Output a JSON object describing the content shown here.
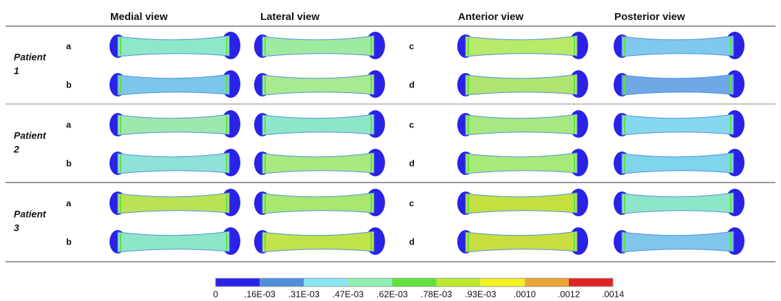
{
  "header": {
    "columns": [
      "Medial view",
      "Lateral view",
      "Anterior view",
      "Posterior view"
    ]
  },
  "patients": [
    {
      "label": "Patient",
      "number": "1",
      "rows": [
        {
          "left": "a",
          "right": "c"
        },
        {
          "left": "b",
          "right": "d"
        }
      ]
    },
    {
      "label": "Patient",
      "number": "2",
      "rows": [
        {
          "left": "a",
          "right": "c"
        },
        {
          "left": "b",
          "right": "d"
        }
      ]
    },
    {
      "label": "Patient",
      "number": "3",
      "rows": [
        {
          "left": "a",
          "right": "c"
        },
        {
          "left": "b",
          "right": "d"
        }
      ]
    }
  ],
  "colorbar": {
    "colors": [
      "#2a22e6",
      "#4f8fdc",
      "#86e6f2",
      "#8ff0b4",
      "#5fe23a",
      "#bdea2a",
      "#f4f21e",
      "#eda431",
      "#e02424"
    ],
    "labels": [
      "0",
      ".16E-03",
      ".31E-03",
      ".47E-03",
      ".62E-03",
      ".78E-03",
      ".93E-03",
      ".0010",
      ".0012",
      ".0014"
    ]
  }
}
